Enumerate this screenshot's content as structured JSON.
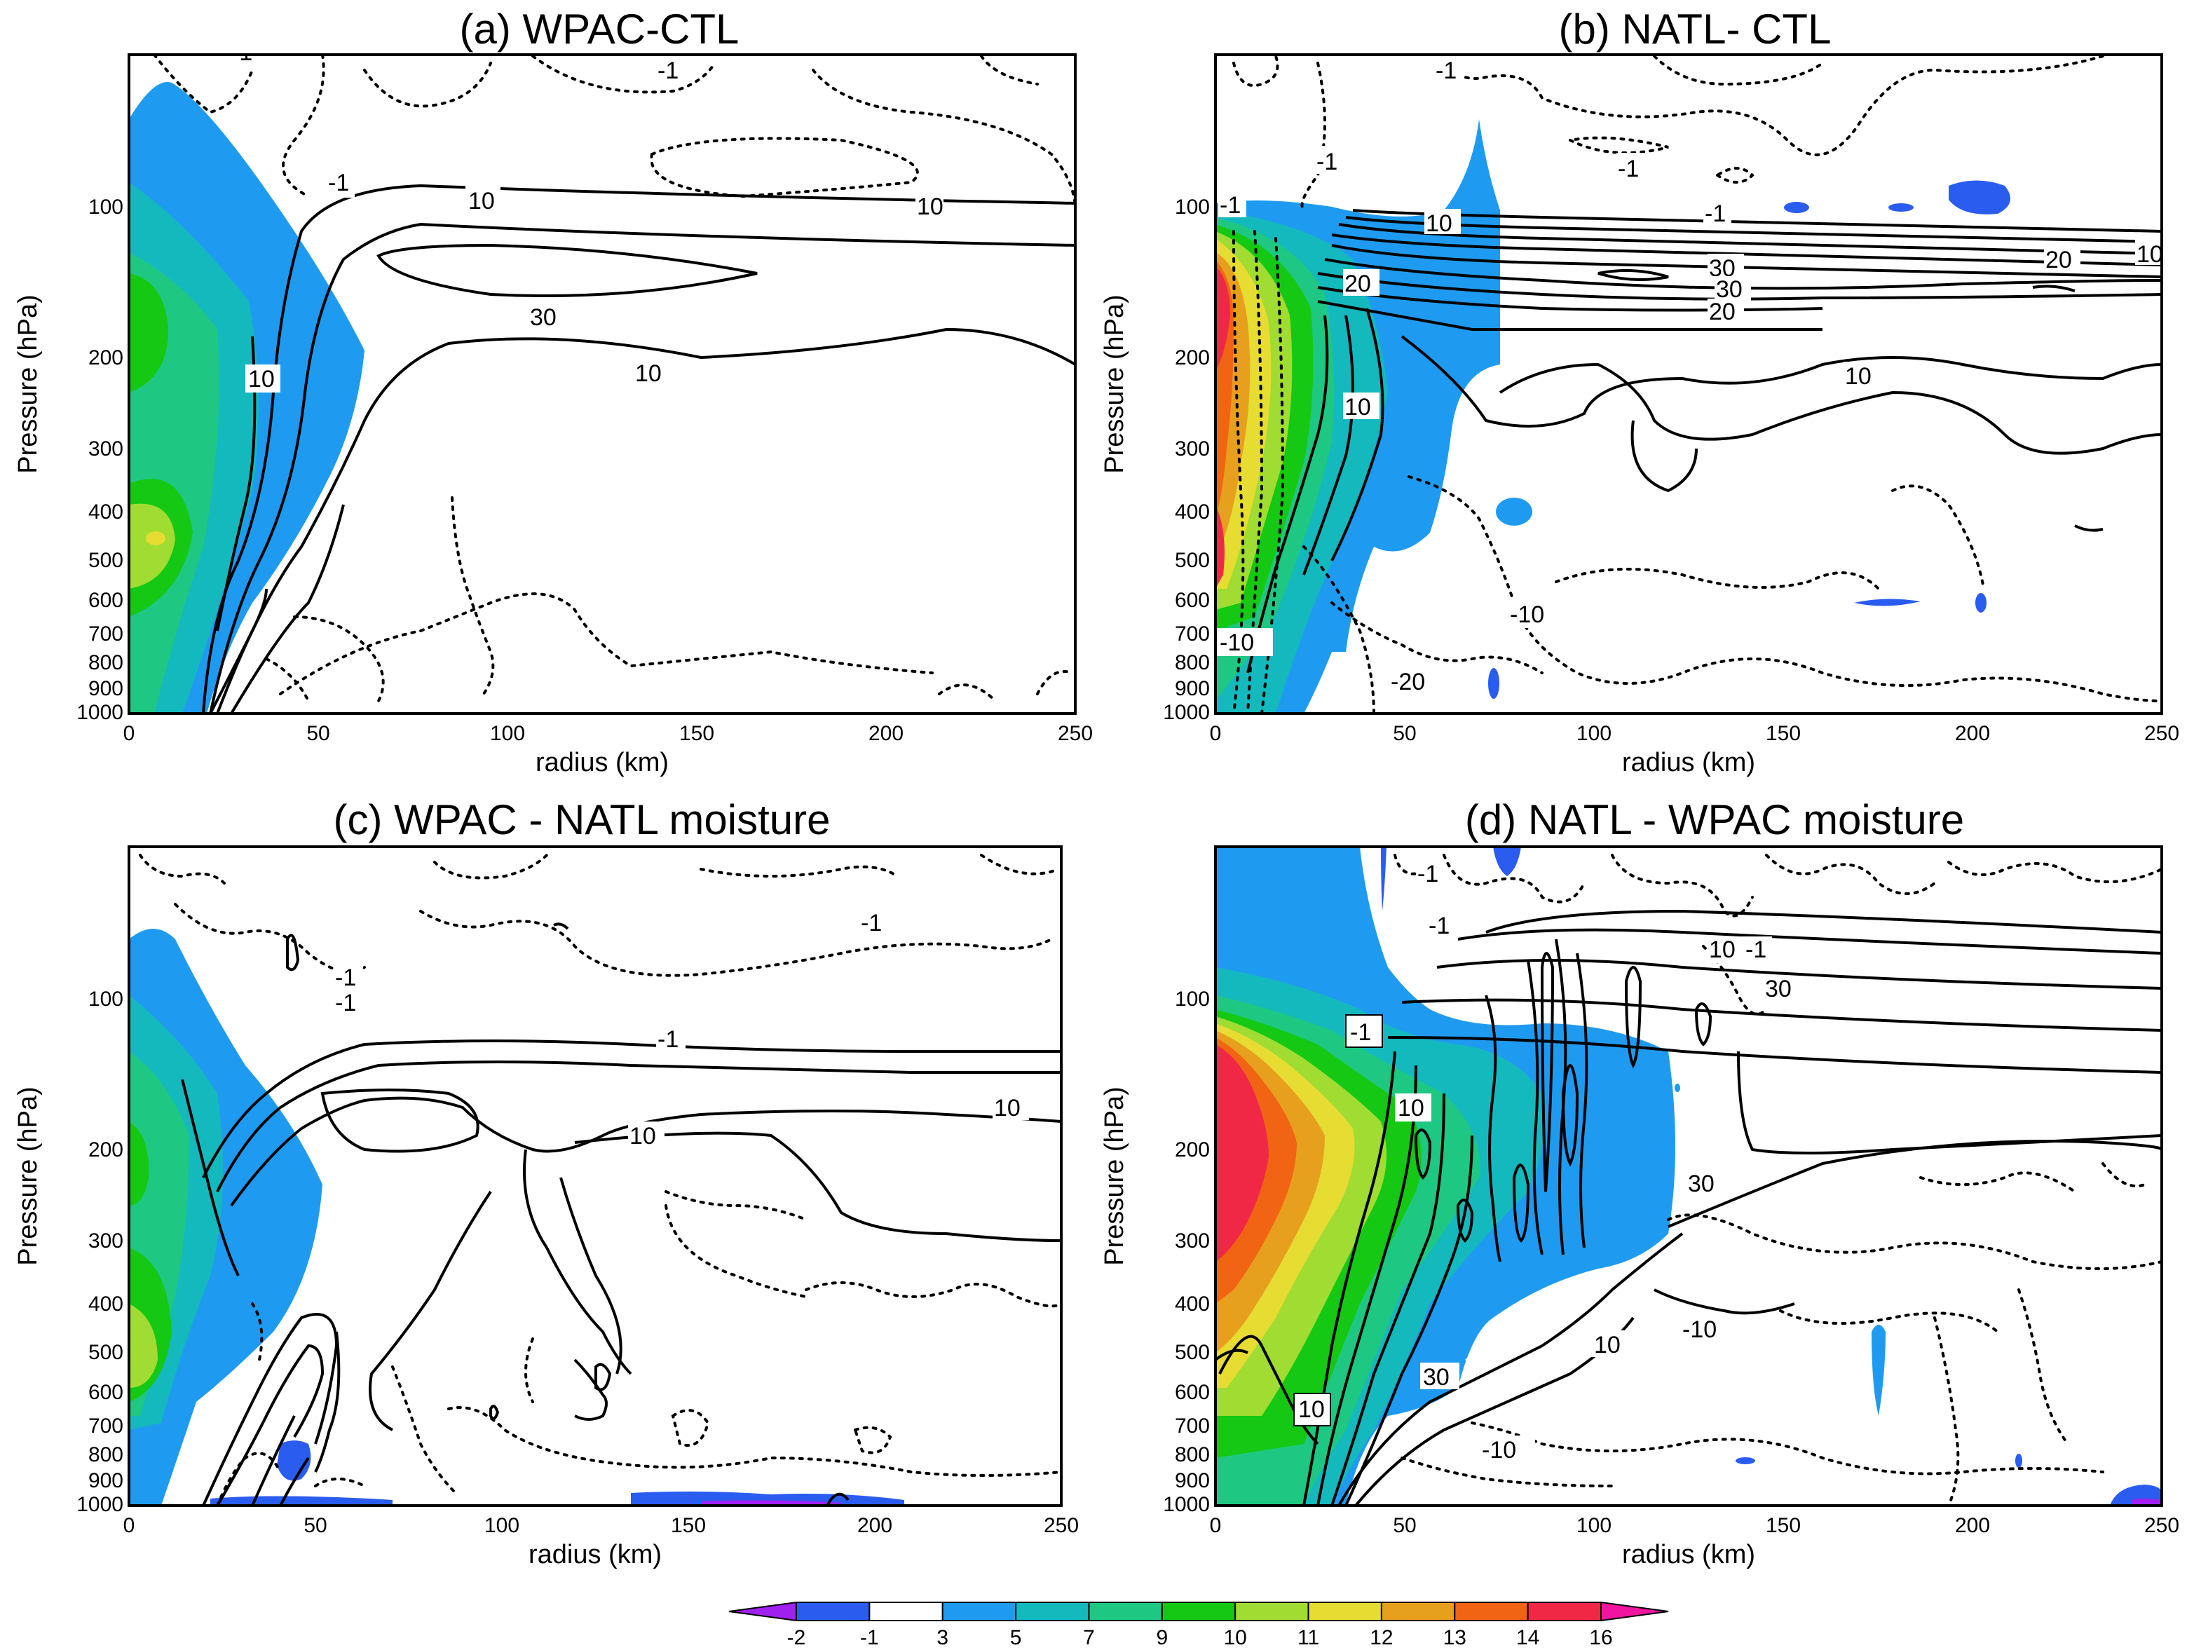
{
  "chart_data": [
    {
      "type": "contour",
      "title": "(a) WPAC-CTL",
      "xlabel": "radius (km)",
      "ylabel": "Pressure (hPa)",
      "xlim": [
        0,
        250
      ],
      "ylim": [
        1000,
        30
      ],
      "yscale": "log",
      "xticks": [
        "0",
        "50",
        "100",
        "150",
        "200",
        "250"
      ],
      "yticks": [
        "100",
        "200",
        "300",
        "400",
        "500",
        "600",
        "700",
        "800",
        "900",
        "1000"
      ],
      "filled_maxima": [
        {
          "radius": 0,
          "pressure": 175,
          "value": 9
        },
        {
          "radius": 8,
          "pressure": 450,
          "value": 11
        }
      ],
      "contour_labels": [
        "-1",
        "-1",
        "-1",
        "10",
        "10",
        "30",
        "10",
        "10"
      ]
    },
    {
      "type": "contour",
      "title": "(b) NATL- CTL",
      "xlabel": "radius (km)",
      "ylabel": "Pressure (hPa)",
      "xlim": [
        0,
        250
      ],
      "ylim": [
        1000,
        30
      ],
      "yscale": "log",
      "xticks": [
        "0",
        "50",
        "100",
        "150",
        "200",
        "250"
      ],
      "yticks": [
        "100",
        "200",
        "300",
        "400",
        "500",
        "600",
        "700",
        "800",
        "900",
        "1000"
      ],
      "filled_maxima": [
        {
          "radius": 3,
          "pressure": 170,
          "value": 14
        },
        {
          "radius": 3,
          "pressure": 450,
          "value": 13
        }
      ],
      "contour_labels": [
        "-1",
        "-1",
        "-1",
        "-1",
        "-1",
        "10",
        "10",
        "20",
        "20",
        "30",
        "30",
        "20",
        "10",
        "10",
        "-10",
        "-10",
        "-20"
      ]
    },
    {
      "type": "contour",
      "title": "(c) WPAC - NATL moisture",
      "xlabel": "radius (km)",
      "ylabel": "Pressure (hPa)",
      "xlim": [
        0,
        250
      ],
      "ylim": [
        1000,
        30
      ],
      "yscale": "log",
      "xticks": [
        "0",
        "50",
        "100",
        "150",
        "200",
        "250"
      ],
      "yticks": [
        "100",
        "200",
        "300",
        "400",
        "500",
        "600",
        "700",
        "800",
        "900",
        "1000"
      ],
      "filled_maxima": [
        {
          "radius": 2,
          "pressure": 200,
          "value": 9
        },
        {
          "radius": 3,
          "pressure": 500,
          "value": 11
        }
      ],
      "contour_labels": [
        "-1",
        "-1",
        "-1",
        "-1",
        "10",
        "10"
      ]
    },
    {
      "type": "contour",
      "title": "(d) NATL - WPAC moisture",
      "xlabel": "radius (km)",
      "ylabel": "Pressure (hPa)",
      "xlim": [
        0,
        250
      ],
      "ylim": [
        1000,
        30
      ],
      "yscale": "log",
      "xticks": [
        "0",
        "50",
        "100",
        "150",
        "200",
        "250"
      ],
      "yticks": [
        "100",
        "200",
        "300",
        "400",
        "500",
        "600",
        "700",
        "800",
        "900",
        "1000"
      ],
      "filled_maxima": [
        {
          "radius": 8,
          "pressure": 200,
          "value": 16
        }
      ],
      "contour_labels": [
        "-1",
        "-1",
        "10",
        "-1",
        "30",
        "-1",
        "10",
        "30",
        "10",
        "-10",
        "30",
        "10",
        "-10"
      ]
    }
  ],
  "colorbar": {
    "ticks": [
      "-2",
      "-1",
      "3",
      "5",
      "7",
      "9",
      "10",
      "11",
      "12",
      "13",
      "14",
      "16"
    ],
    "colors": [
      "#a020f0",
      "#2a5cf0",
      "#ffffff",
      "#1e9bf0",
      "#14b9be",
      "#1ec882",
      "#14c814",
      "#a0dc32",
      "#e6dc32",
      "#e6a01e",
      "#f06414",
      "#f02846",
      "#f014a0"
    ]
  }
}
